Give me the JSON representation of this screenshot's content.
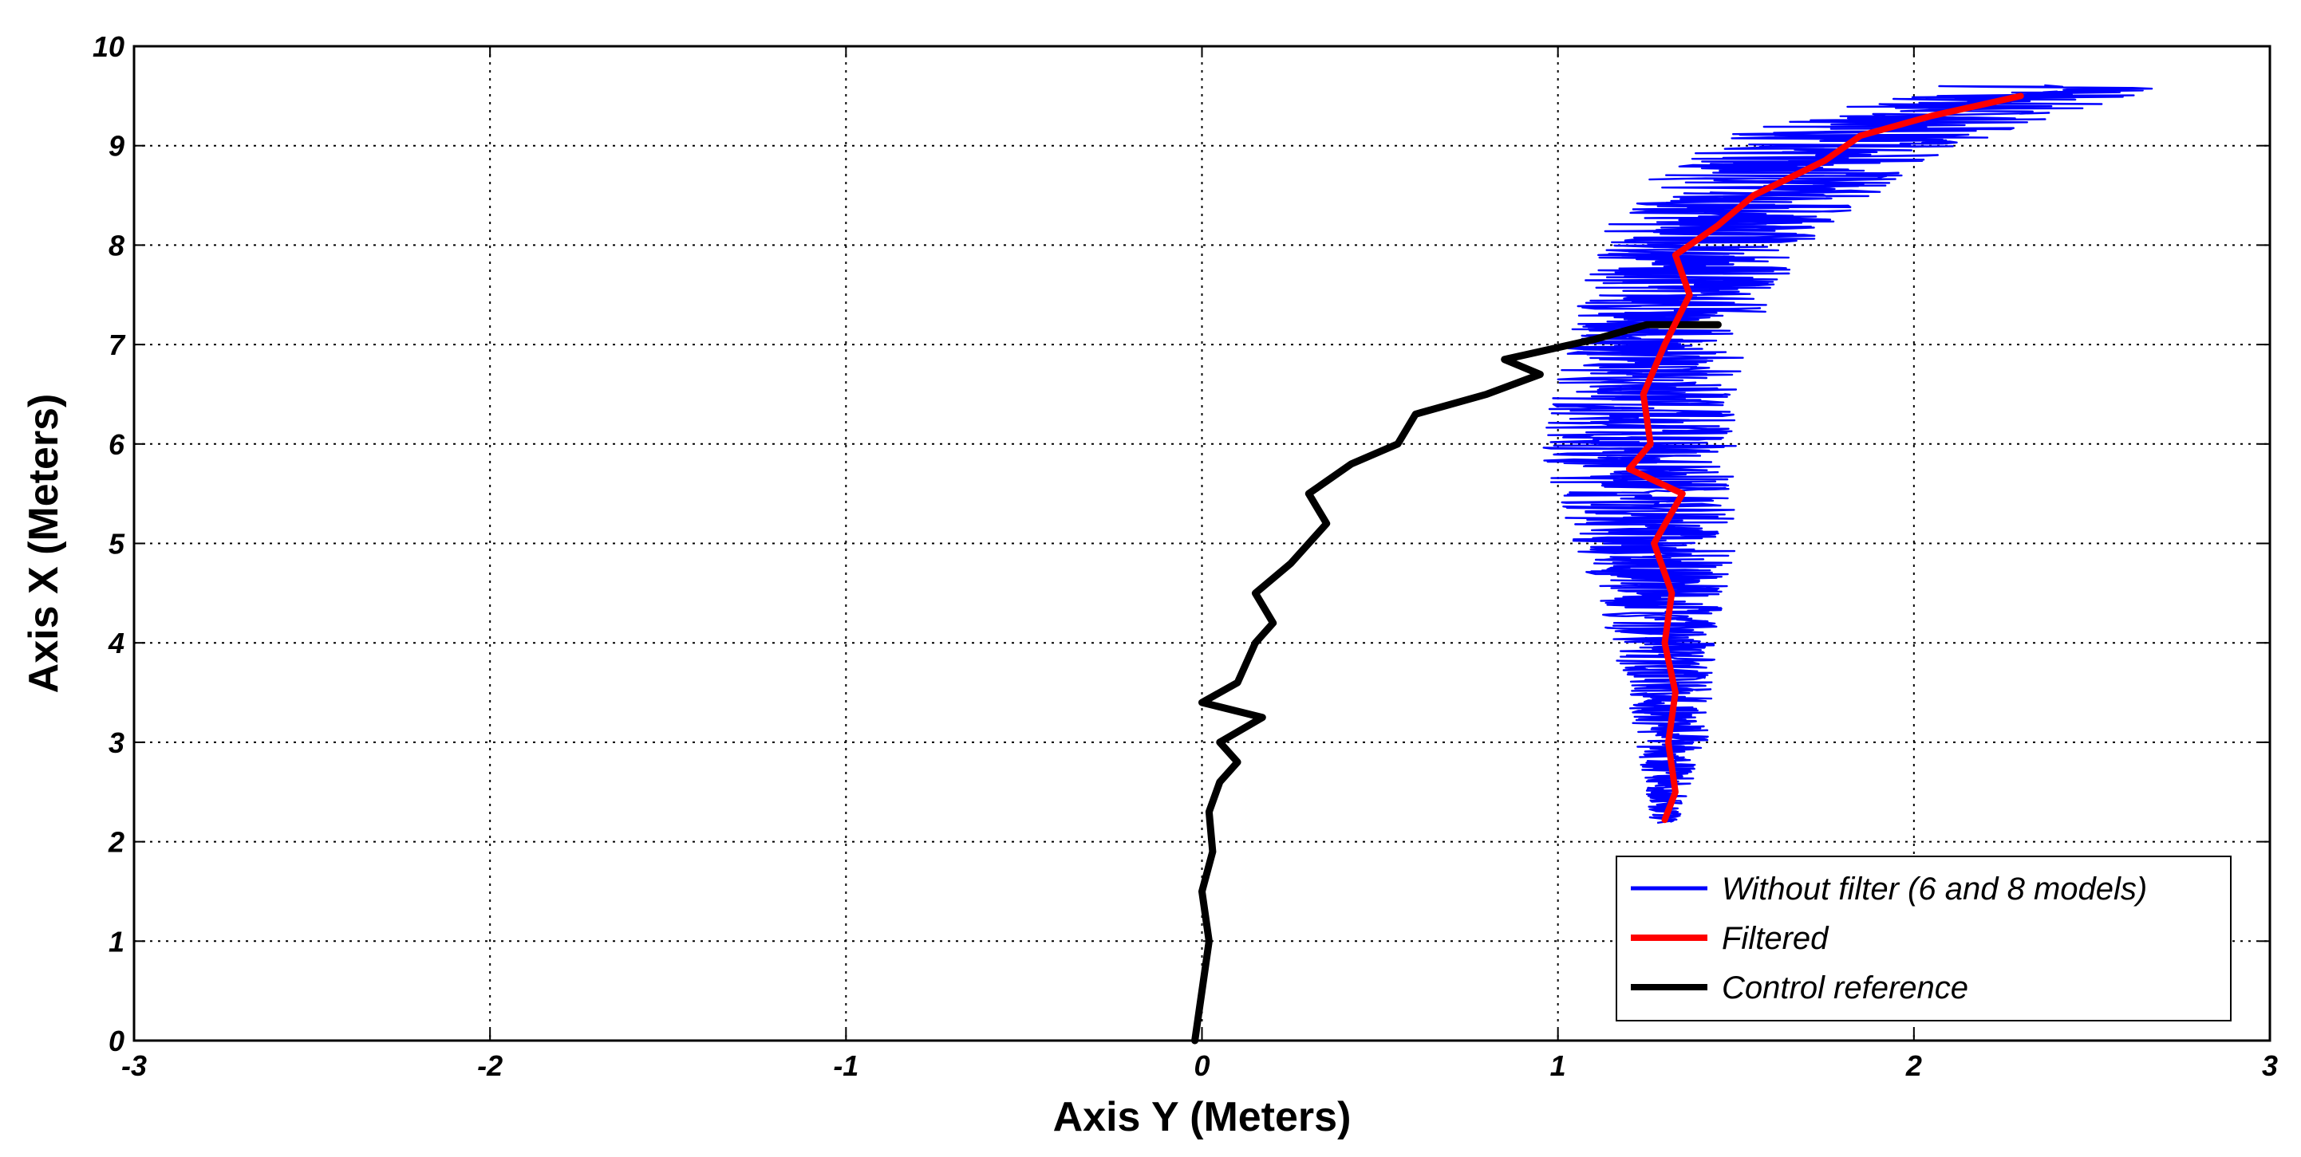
{
  "chart_data": {
    "type": "line",
    "title": "",
    "xlabel": "Axis Y (Meters)",
    "ylabel": "Axis X (Meters)",
    "xlim": [
      -3,
      3
    ],
    "ylim": [
      0,
      10
    ],
    "xticks": [
      "-3",
      "-2",
      "-1",
      "0",
      "1",
      "2",
      "3"
    ],
    "yticks": [
      "0",
      "1",
      "2",
      "3",
      "4",
      "5",
      "6",
      "7",
      "8",
      "9",
      "10"
    ],
    "grid": true,
    "legend_position": "bottom-right",
    "series": [
      {
        "name": "Without filter (6 and 8 models)",
        "color": "#0000ff",
        "style": "noisy",
        "center": [
          [
            1.3,
            2.2
          ],
          [
            1.32,
            3.0
          ],
          [
            1.3,
            4.0
          ],
          [
            1.27,
            5.0
          ],
          [
            1.22,
            6.0
          ],
          [
            1.28,
            7.0
          ],
          [
            1.35,
            7.6
          ],
          [
            1.45,
            8.2
          ],
          [
            1.62,
            8.7
          ],
          [
            1.85,
            9.1
          ],
          [
            2.1,
            9.35
          ],
          [
            2.4,
            9.6
          ]
        ],
        "spread": [
          [
            2.2,
            0.04
          ],
          [
            3.0,
            0.1
          ],
          [
            4.0,
            0.15
          ],
          [
            5.0,
            0.23
          ],
          [
            6.0,
            0.28
          ],
          [
            7.0,
            0.25
          ],
          [
            8.0,
            0.3
          ],
          [
            9.0,
            0.38
          ],
          [
            9.6,
            0.35
          ]
        ]
      },
      {
        "name": "Filtered",
        "color": "#ff0000",
        "points": [
          [
            1.3,
            2.22
          ],
          [
            1.33,
            2.5
          ],
          [
            1.31,
            3.0
          ],
          [
            1.33,
            3.5
          ],
          [
            1.3,
            4.0
          ],
          [
            1.32,
            4.5
          ],
          [
            1.27,
            5.0
          ],
          [
            1.35,
            5.5
          ],
          [
            1.2,
            5.75
          ],
          [
            1.26,
            6.0
          ],
          [
            1.24,
            6.5
          ],
          [
            1.3,
            7.0
          ],
          [
            1.37,
            7.5
          ],
          [
            1.33,
            7.9
          ],
          [
            1.45,
            8.2
          ],
          [
            1.55,
            8.5
          ],
          [
            1.75,
            8.85
          ],
          [
            1.85,
            9.1
          ],
          [
            2.05,
            9.3
          ],
          [
            2.3,
            9.5
          ]
        ]
      },
      {
        "name": "Control reference",
        "color": "#000000",
        "points": [
          [
            -0.02,
            0.0
          ],
          [
            0.0,
            0.5
          ],
          [
            0.02,
            1.0
          ],
          [
            0.0,
            1.5
          ],
          [
            0.03,
            1.9
          ],
          [
            0.02,
            2.3
          ],
          [
            0.05,
            2.6
          ],
          [
            0.1,
            2.8
          ],
          [
            0.05,
            3.0
          ],
          [
            0.17,
            3.25
          ],
          [
            0.0,
            3.4
          ],
          [
            0.1,
            3.6
          ],
          [
            0.15,
            4.0
          ],
          [
            0.2,
            4.2
          ],
          [
            0.15,
            4.5
          ],
          [
            0.25,
            4.8
          ],
          [
            0.35,
            5.2
          ],
          [
            0.3,
            5.5
          ],
          [
            0.42,
            5.8
          ],
          [
            0.55,
            6.0
          ],
          [
            0.6,
            6.3
          ],
          [
            0.8,
            6.5
          ],
          [
            0.95,
            6.7
          ],
          [
            0.85,
            6.85
          ],
          [
            1.1,
            7.05
          ],
          [
            1.25,
            7.2
          ],
          [
            1.45,
            7.2
          ]
        ]
      }
    ]
  }
}
